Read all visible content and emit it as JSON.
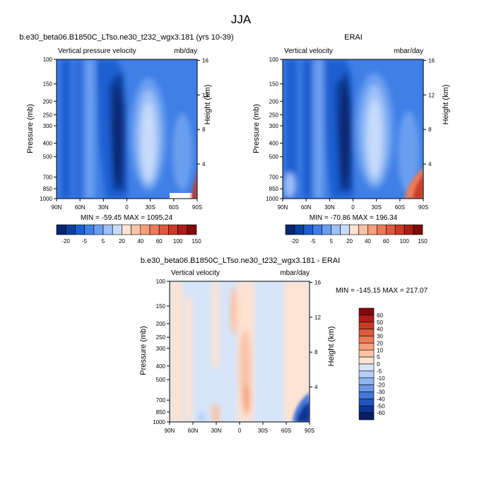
{
  "figure": {
    "title": "JJA",
    "panel_a_title": "b.e30_beta06.B1850C_LTso.ne30_t232_wgx3.181 (yrs 10-39)",
    "panel_b_title": "ERAI",
    "panel_c_title": "b.e30_beta06.B1850C_LTso.ne30_t232_wgx3.181 - ERAI"
  },
  "chart_data": [
    {
      "type": "heatmap",
      "subtitle_left": "Vertical pressure velocity",
      "subtitle_right": "mb/day",
      "ylabel": "Pressure (mb)",
      "ylabel_right": "Height (km)",
      "y_ticks": [
        "100",
        "150",
        "200",
        "250",
        "300",
        "400",
        "500",
        "700",
        "850",
        "1000"
      ],
      "y_right_ticks": [
        "16",
        "12",
        "8",
        "4"
      ],
      "x_ticks": [
        "90N",
        "60N",
        "30N",
        "0",
        "30S",
        "60S",
        "90S"
      ],
      "stats": "MIN = -59.45   MAX = 1095.24",
      "colorbar_levels": [
        "-20",
        "-5",
        "5",
        "20",
        "40",
        "60",
        "100",
        "150"
      ],
      "colorbar_colors": [
        "#08256e",
        "#0a3f9e",
        "#1c5fd0",
        "#3f7fe6",
        "#6a9ff0",
        "#9cc0f7",
        "#c8dcfa",
        "#fde3d2",
        "#f9c3a6",
        "#f3a07c",
        "#ea7b58",
        "#dd5a3c",
        "#c93a26",
        "#ab1d16",
        "#7e0a0a"
      ],
      "features": [
        "uplift core near equator (~10N-5N)",
        "subsidence lobe 5S-40S",
        "descent near surface 60S-90S"
      ]
    },
    {
      "type": "heatmap",
      "subtitle_left": "Vertical velocity",
      "subtitle_right": "mbar/day",
      "ylabel": "Pressure (mb)",
      "ylabel_right": "Height (km)",
      "y_ticks": [
        "100",
        "150",
        "200",
        "250",
        "300",
        "400",
        "500",
        "700",
        "850",
        "1000"
      ],
      "y_right_ticks": [
        "16",
        "12",
        "8",
        "4"
      ],
      "x_ticks": [
        "90N",
        "60N",
        "30N",
        "0",
        "30S",
        "60S",
        "90S"
      ],
      "stats": "MIN = -70.86   MAX = 196.34",
      "colorbar_levels": [
        "-20",
        "-5",
        "5",
        "20",
        "40",
        "60",
        "100",
        "150"
      ],
      "colorbar_colors": [
        "#08256e",
        "#0a3f9e",
        "#1c5fd0",
        "#3f7fe6",
        "#6a9ff0",
        "#9cc0f7",
        "#c8dcfa",
        "#fde3d2",
        "#f9c3a6",
        "#f3a07c",
        "#ea7b58",
        "#dd5a3c",
        "#c93a26",
        "#ab1d16",
        "#7e0a0a"
      ],
      "features": [
        "uplift core near equator",
        "subsidence lobe 5S-40S",
        "strong positive near surface 60S-90S"
      ]
    },
    {
      "type": "heatmap",
      "subtitle_left": "Vertical velocity",
      "subtitle_right": "mbar/day",
      "ylabel": "Pressure (mb)",
      "ylabel_right": "Height (km)",
      "y_ticks": [
        "100",
        "150",
        "200",
        "250",
        "300",
        "400",
        "500",
        "700",
        "850",
        "1000"
      ],
      "y_right_ticks": [
        "16",
        "12",
        "8",
        "4"
      ],
      "x_ticks": [
        "90N",
        "60N",
        "30N",
        "0",
        "30S",
        "60S",
        "90S"
      ],
      "stats": "MIN = -145.15   MAX = 217.07",
      "colorbar_levels": [
        "60",
        "50",
        "40",
        "30",
        "20",
        "10",
        "5",
        "0",
        "-5",
        "-10",
        "-20",
        "-30",
        "-40",
        "-50",
        "-60"
      ],
      "colorbar_colors": [
        "#7e0a0a",
        "#ab1d16",
        "#c93a26",
        "#dd5a3c",
        "#ea7b58",
        "#f3a07c",
        "#f9c3a6",
        "#fde3d2",
        "#d6e5fa",
        "#b3cdf5",
        "#8fb3ef",
        "#6a97e6",
        "#4576d8",
        "#2453bd",
        "#0b3494",
        "#081f66"
      ],
      "features": [
        "small differences mostly within +/-5",
        "positive band near equator",
        "strong negative near surface 70S-85S"
      ]
    }
  ]
}
